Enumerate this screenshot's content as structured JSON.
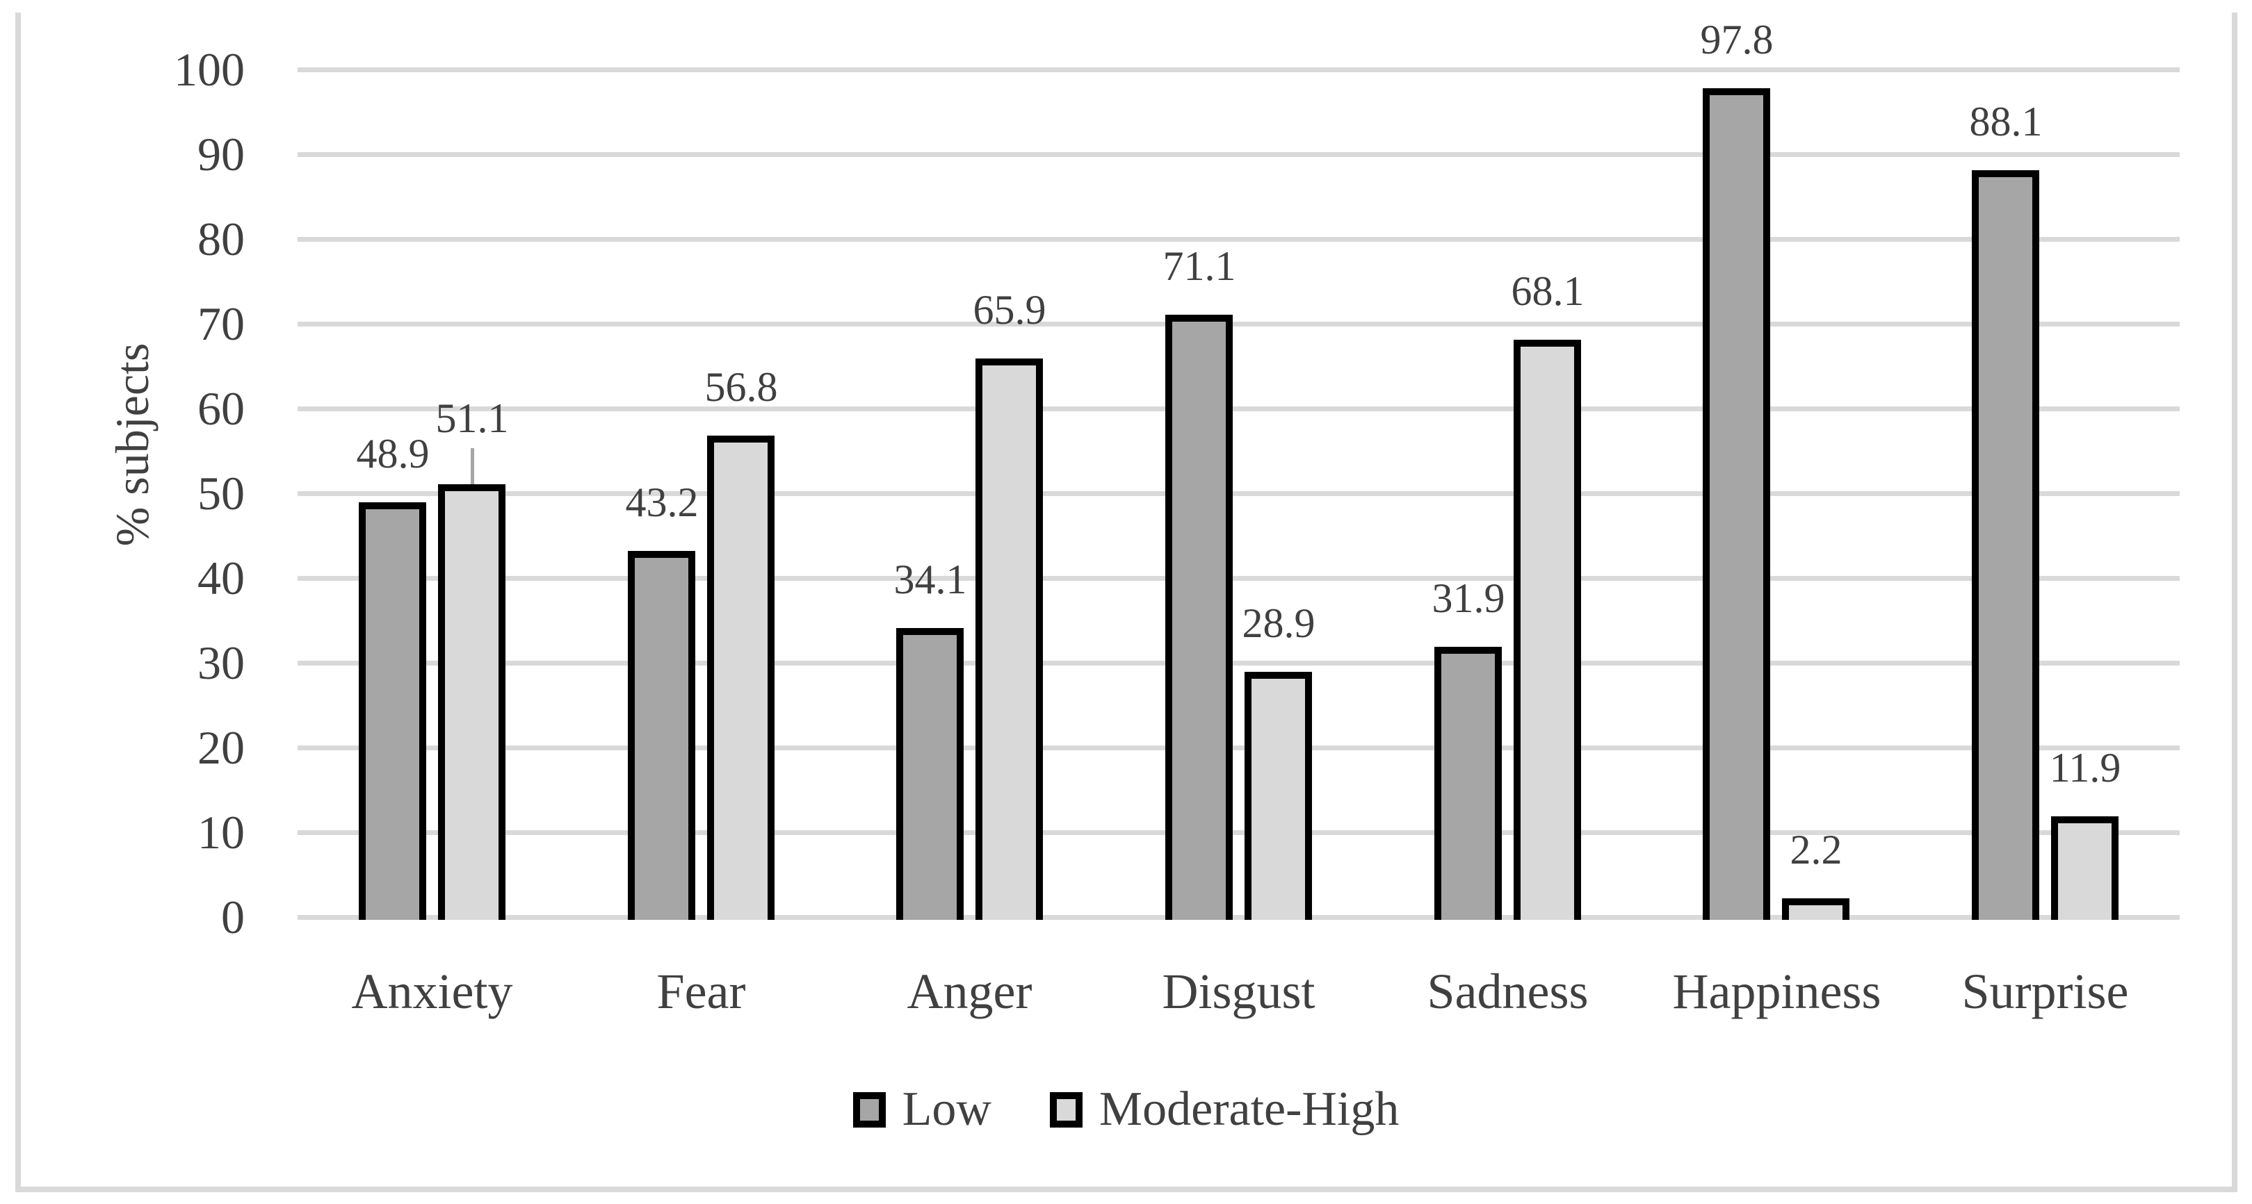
{
  "figure": {
    "background": "#ffffff",
    "frame_color": "#d9d9d9",
    "text_color": "#404040"
  },
  "chart_data": {
    "type": "bar",
    "title": "",
    "xlabel": "",
    "ylabel": "% subjects",
    "categories": [
      "Anxiety",
      "Fear",
      "Anger",
      "Disgust",
      "Sadness",
      "Happiness",
      "Surprise"
    ],
    "series": [
      {
        "name": "Low",
        "color": "#a6a6a6",
        "values": [
          48.9,
          43.2,
          34.1,
          71.1,
          31.9,
          97.8,
          88.1
        ]
      },
      {
        "name": "Moderate-High",
        "color": "#d9d9d9",
        "values": [
          51.1,
          56.8,
          65.9,
          28.9,
          68.1,
          2.2,
          11.9
        ]
      }
    ],
    "data_labels": [
      "48.9",
      "51.1",
      "43.2",
      "56.8",
      "34.1",
      "65.9",
      "71.1",
      "28.9",
      "31.9",
      "68.1",
      "97.8",
      "2.2",
      "88.1",
      "11.9"
    ],
    "ylim": [
      0,
      100
    ],
    "yticks": [
      0,
      10,
      20,
      30,
      40,
      50,
      60,
      70,
      80,
      90,
      100
    ],
    "grid": "horizontal",
    "gridline_color": "#d9d9d9",
    "bar_border_color": "#000000",
    "legend_position": "bottom",
    "legend_labels": [
      "Low",
      "Moderate-High"
    ],
    "annotations": [
      {
        "type": "leader-line",
        "series": "Moderate-High",
        "category": "Anxiety",
        "color": "#a6a6a6"
      }
    ]
  }
}
